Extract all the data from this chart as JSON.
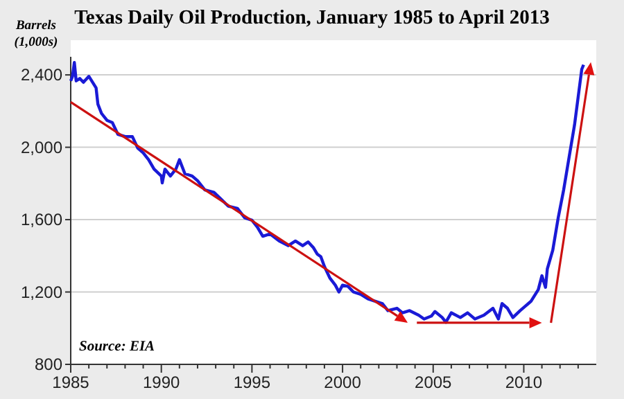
{
  "chart_data": {
    "type": "line",
    "title": "Texas Daily Oil Production, January 1985 to April 2013",
    "ylabel": "Barrels (1,000s)",
    "annotations": [
      "Source: EIA"
    ],
    "xlim": [
      1985,
      2014
    ],
    "ylim": [
      800,
      2500
    ],
    "xticks": [
      1985,
      {
        "value": 1986,
        "label": null
      },
      {
        "value": 1987,
        "label": null
      },
      {
        "value": 1988,
        "label": null
      },
      {
        "value": 1989,
        "label": null
      },
      1990,
      {
        "value": 1991,
        "label": null
      },
      {
        "value": 1992,
        "label": null
      },
      {
        "value": 1993,
        "label": null
      },
      {
        "value": 1994,
        "label": null
      },
      1995,
      {
        "value": 1996,
        "label": null
      },
      {
        "value": 1997,
        "label": null
      },
      {
        "value": 1998,
        "label": null
      },
      {
        "value": 1999,
        "label": null
      },
      2000,
      {
        "value": 2001,
        "label": null
      },
      {
        "value": 2002,
        "label": null
      },
      {
        "value": 2003,
        "label": null
      },
      {
        "value": 2004,
        "label": null
      },
      2005,
      {
        "value": 2006,
        "label": null
      },
      {
        "value": 2007,
        "label": null
      },
      {
        "value": 2008,
        "label": null
      },
      {
        "value": 2009,
        "label": null
      },
      2010,
      {
        "value": 2011,
        "label": null
      },
      {
        "value": 2012,
        "label": null
      },
      {
        "value": 2013,
        "label": null
      }
    ],
    "yticks": [
      {
        "value": 800,
        "label": "800"
      },
      {
        "value": 1200,
        "label": "1,200"
      },
      {
        "value": 1600,
        "label": "1,600"
      },
      {
        "value": 2000,
        "label": "2,000"
      },
      {
        "value": 2400,
        "label": "2,400"
      }
    ],
    "grid": "y",
    "series": [
      {
        "color": "#1a1ad6",
        "x": [
          1985.0,
          1985.1,
          1985.2,
          1985.3,
          1985.5,
          1985.7,
          1986.0,
          1986.4,
          1986.5,
          1986.7,
          1987.0,
          1987.3,
          1987.6,
          1988.0,
          1988.4,
          1988.7,
          1989.0,
          1989.3,
          1989.6,
          1990.0,
          1990.05,
          1990.2,
          1990.5,
          1990.8,
          1991.0,
          1991.3,
          1991.7,
          1992.0,
          1992.4,
          1992.9,
          1993.3,
          1993.7,
          1994.2,
          1994.6,
          1995.0,
          1995.3,
          1995.6,
          1996.0,
          1996.5,
          1997.0,
          1997.4,
          1997.8,
          1998.1,
          1998.4,
          1998.6,
          1998.8,
          1999.0,
          1999.3,
          1999.6,
          1999.8,
          2000.0,
          2000.3,
          2000.6,
          2001.0,
          2001.4,
          2001.8,
          2002.2,
          2002.5,
          2003.0,
          2003.3,
          2003.7,
          2004.2,
          2004.5,
          2004.9,
          2005.1,
          2005.5,
          2005.7,
          2006.0,
          2006.5,
          2006.9,
          2007.3,
          2007.8,
          2008.3,
          2008.6,
          2008.8,
          2009.1,
          2009.4,
          2009.8,
          2010.1,
          2010.4,
          2010.8,
          2011.0,
          2011.2,
          2011.3,
          2011.6,
          2011.9,
          2012.2,
          2012.5,
          2012.8,
          2013.0,
          2013.2,
          2013.3
        ],
        "values": [
          2367,
          2392,
          2469,
          2367,
          2380,
          2359,
          2392,
          2328,
          2238,
          2187,
          2149,
          2136,
          2072,
          2059,
          2059,
          1995,
          1969,
          1931,
          1879,
          1841,
          1803,
          1879,
          1841,
          1879,
          1931,
          1854,
          1841,
          1815,
          1764,
          1751,
          1713,
          1674,
          1662,
          1610,
          1597,
          1559,
          1508,
          1521,
          1482,
          1456,
          1482,
          1456,
          1477,
          1444,
          1410,
          1395,
          1341,
          1277,
          1238,
          1200,
          1238,
          1231,
          1200,
          1187,
          1162,
          1149,
          1136,
          1097,
          1110,
          1085,
          1097,
          1072,
          1051,
          1067,
          1092,
          1059,
          1033,
          1085,
          1059,
          1085,
          1051,
          1072,
          1110,
          1051,
          1136,
          1110,
          1059,
          1097,
          1123,
          1149,
          1213,
          1290,
          1226,
          1328,
          1431,
          1610,
          1764,
          1944,
          2123,
          2277,
          2431,
          2456
        ]
      }
    ]
  }
}
